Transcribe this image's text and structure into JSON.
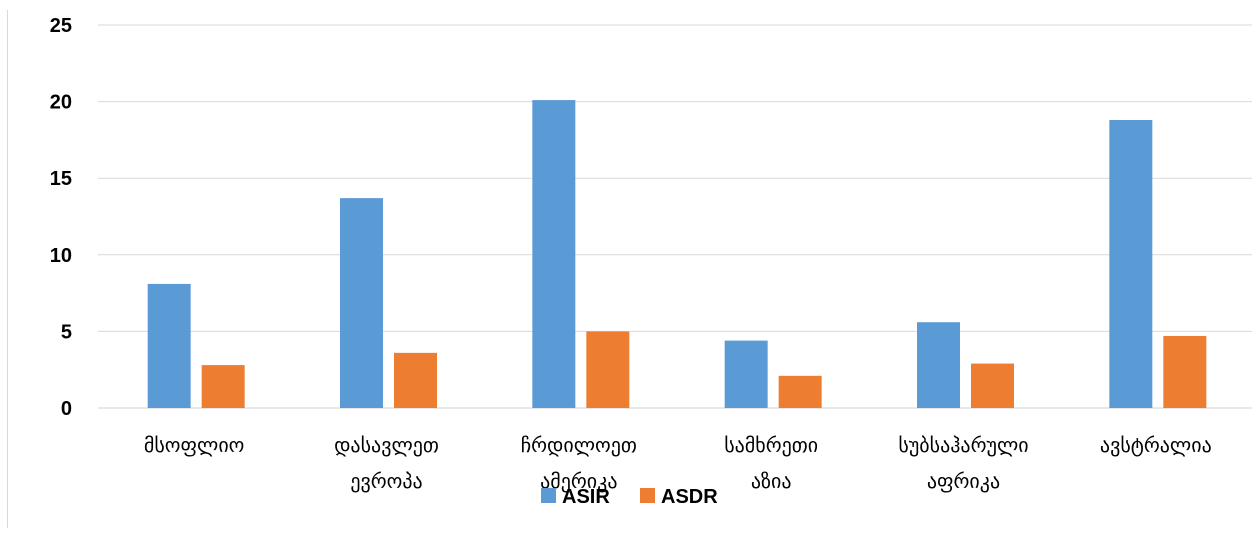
{
  "chart_data": {
    "type": "bar",
    "title": "",
    "xlabel": "",
    "ylabel": "",
    "categories": [
      [
        "მსოფლიო"
      ],
      [
        "დასავლეთ",
        "ევროპა"
      ],
      [
        "ჩრდილოეთ",
        "ამერიკა"
      ],
      [
        "სამხრეთი",
        "აზია"
      ],
      [
        "სუბსაჰარული",
        "აფრიკა"
      ],
      [
        "ავსტრალია"
      ]
    ],
    "series": [
      {
        "name": "ASIR",
        "color": "#5B9BD5",
        "values": [
          8.1,
          13.7,
          20.1,
          4.4,
          5.6,
          18.8
        ]
      },
      {
        "name": "ASDR",
        "color": "#ED7D31",
        "values": [
          2.8,
          3.6,
          5.0,
          2.1,
          2.9,
          4.7
        ]
      }
    ],
    "ylim": [
      0,
      25
    ],
    "yticks": [
      "0",
      "5",
      "10",
      "15",
      "20",
      "25"
    ],
    "grid": true,
    "legend_position": "bottom"
  }
}
